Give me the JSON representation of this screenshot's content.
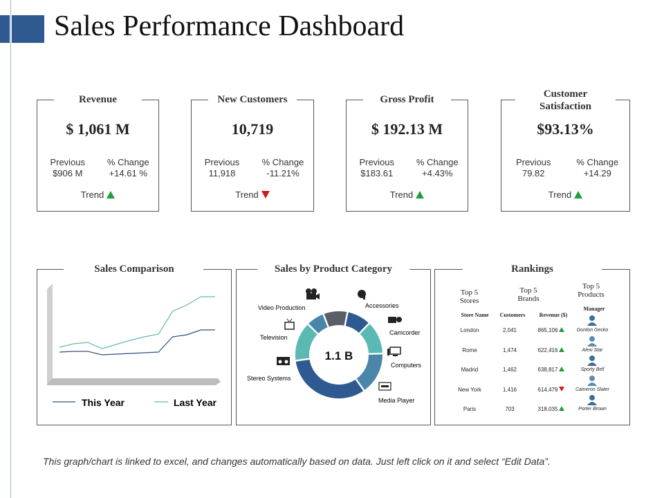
{
  "page": {
    "title": "Sales Performance Dashboard"
  },
  "kpis": [
    {
      "title": "Revenue",
      "value": "$ 1,061 M",
      "previous_label": "Previous",
      "previous_value": "$906 M",
      "change_label": "% Change",
      "change_value": "+14.61 %",
      "trend_label": "Trend",
      "trend": "up"
    },
    {
      "title": "New Customers",
      "value": "10,719",
      "previous_label": "Previous",
      "previous_value": "11,918",
      "change_label": "% Change",
      "change_value": "-11.21%",
      "trend_label": "Trend",
      "trend": "down"
    },
    {
      "title": "Gross Profit",
      "value": "$ 192.13 M",
      "previous_label": "Previous",
      "previous_value": "$183.61",
      "change_label": "% Change",
      "change_value": "+4.43%",
      "trend_label": "Trend",
      "trend": "up"
    },
    {
      "title": "Customer Satisfaction",
      "value": "$93.13%",
      "previous_label": "Previous",
      "previous_value": "79.82",
      "change_label": "% Change",
      "change_value": "+14.29",
      "trend_label": "Trend",
      "trend": "up"
    }
  ],
  "colors": {
    "accent": "#2f5a91",
    "this_year": "#2f4f7f",
    "last_year": "#5fb8b5",
    "up": "#1f9e3b",
    "down": "#d01919"
  },
  "chart_data": [
    {
      "type": "line",
      "title": "Sales Comparison",
      "x": [
        1,
        2,
        3,
        4,
        5,
        6,
        7,
        8,
        9,
        10,
        11,
        12
      ],
      "series": [
        {
          "name": "This Year",
          "values": [
            30,
            31,
            31,
            26,
            27,
            28,
            29,
            30,
            52,
            55,
            62,
            62
          ]
        },
        {
          "name": "Last Year",
          "values": [
            37,
            42,
            44,
            35,
            41,
            47,
            52,
            56,
            89,
            98,
            110,
            110
          ]
        }
      ],
      "ylim": [
        0,
        130
      ],
      "legend": "bottom",
      "grid": false
    },
    {
      "type": "pie",
      "title": "Sales by Product Category",
      "center_label": "1.1 B",
      "categories": [
        "Accessories",
        "Camcorder",
        "Computers",
        "Media Player",
        "Stereo Systems",
        "Television",
        "Video Production"
      ],
      "values": [
        8,
        11,
        14,
        29,
        13,
        6,
        8
      ],
      "colors": [
        "#2f5a91",
        "#5bb9b4",
        "#4a86a8",
        "#2f5a91",
        "#5bb9b4",
        "#4a86a8",
        "#5a5e66"
      ],
      "icons": [
        "headset-icon",
        "camcorder-icon",
        "computer-icon",
        "media-player-icon",
        "stereo-icon",
        "television-icon",
        "video-camera-icon"
      ]
    }
  ],
  "rankings": {
    "title": "Rankings",
    "top_stores": "Top 5 Stores",
    "top_brands": "Top 5 Brands",
    "top_products": "Top 5 Products",
    "col_store": "Store Name",
    "col_customers": "Customers",
    "col_revenue": "Revenue ($)",
    "col_manager": "Manager",
    "rows": [
      {
        "store": "London",
        "customers": "2,041",
        "revenue": "865,106",
        "trend": "up",
        "manager": "Gordon Gecko"
      },
      {
        "store": "Rome",
        "customers": "1,474",
        "revenue": "622,416",
        "trend": "up",
        "manager": "Alexi Star"
      },
      {
        "store": "Madrid",
        "customers": "1,462",
        "revenue": "638,817",
        "trend": "up",
        "manager": "Sporty Bell"
      },
      {
        "store": "New York",
        "customers": "1,416",
        "revenue": "614,479",
        "trend": "down",
        "manager": "Cameron Slater"
      },
      {
        "store": "Paris",
        "customers": "703",
        "revenue": "318,035",
        "trend": "up",
        "manager": "Porter Brown"
      }
    ]
  },
  "footer": {
    "note": "This graph/chart is linked to excel, and changes automatically based on data. Just left click on it and select “Edit Data”."
  }
}
